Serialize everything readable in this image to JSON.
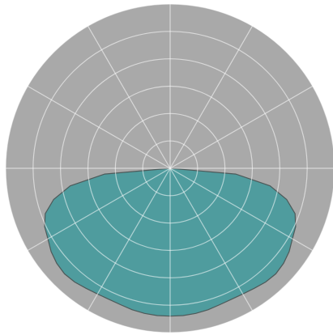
{
  "chart_data": {
    "type": "polar",
    "angles": [
      -90,
      -85,
      -80,
      -75,
      -70,
      -65,
      -60,
      -55,
      -50,
      -45,
      -40,
      -35,
      -30,
      -25,
      -20,
      -15,
      -10,
      -5,
      0,
      5,
      10,
      15,
      20,
      25,
      30,
      35,
      40,
      45,
      50,
      55,
      60,
      65,
      70,
      75,
      80,
      85,
      90
    ],
    "values": [
      0,
      2.4,
      3.7,
      4.4,
      4.85,
      5.05,
      5.15,
      5.3,
      5.4,
      5.45,
      5.42,
      5.35,
      5.3,
      5.28,
      5.3,
      5.35,
      5.38,
      5.4,
      5.4,
      5.4,
      5.38,
      5.35,
      5.3,
      5.28,
      5.3,
      5.35,
      5.42,
      5.45,
      5.4,
      5.3,
      5.15,
      5.05,
      4.85,
      4.4,
      3.7,
      2.4,
      0
    ],
    "color": "#4a9b9d",
    "rlim": [
      0,
      6
    ],
    "rticks": [
      1,
      2,
      3,
      4,
      5,
      6
    ],
    "angleticks": [
      0,
      30,
      60,
      90,
      120,
      150,
      180,
      210,
      240,
      270,
      300,
      330
    ],
    "grid": true
  }
}
